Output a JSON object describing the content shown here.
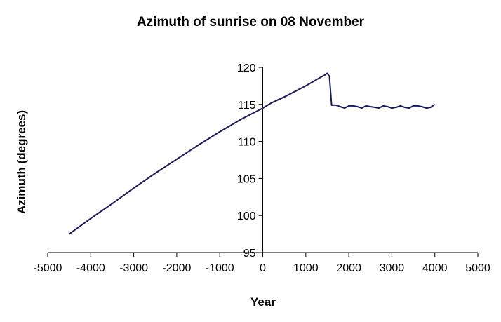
{
  "chart_data": {
    "type": "line",
    "title": "Azimuth of sunrise on 08 November",
    "xlabel": "Year",
    "ylabel": "Azimuth (degrees)",
    "xlim": [
      -5000,
      5000
    ],
    "ylim": [
      95,
      120
    ],
    "xticks": [
      -5000,
      -4000,
      -3000,
      -2000,
      -1000,
      0,
      1000,
      2000,
      3000,
      4000,
      5000
    ],
    "yticks": [
      95,
      100,
      105,
      110,
      115,
      120
    ],
    "grid": false,
    "legend": "none",
    "line_color": "#1a1a5e",
    "series": [
      {
        "x": [
          -4500,
          -4000,
          -3500,
          -3000,
          -2500,
          -2000,
          -1500,
          -1000,
          -500,
          0,
          200,
          500,
          1000,
          1300,
          1450,
          1500,
          1550,
          1600,
          1700,
          1800,
          1900,
          2000,
          2100,
          2200,
          2300,
          2400,
          2500,
          2600,
          2700,
          2800,
          2900,
          3000,
          3100,
          3200,
          3300,
          3400,
          3500,
          3600,
          3700,
          3800,
          3900,
          4000
        ],
        "y": [
          97.5,
          99.6,
          101.6,
          103.7,
          105.7,
          107.6,
          109.5,
          111.3,
          113.0,
          114.5,
          115.2,
          116.0,
          117.5,
          118.5,
          119.0,
          119.2,
          118.8,
          114.9,
          114.9,
          114.7,
          114.5,
          114.8,
          114.8,
          114.7,
          114.5,
          114.8,
          114.7,
          114.6,
          114.5,
          114.8,
          114.7,
          114.5,
          114.6,
          114.8,
          114.6,
          114.5,
          114.8,
          114.8,
          114.7,
          114.5,
          114.6,
          115.0
        ]
      }
    ]
  }
}
